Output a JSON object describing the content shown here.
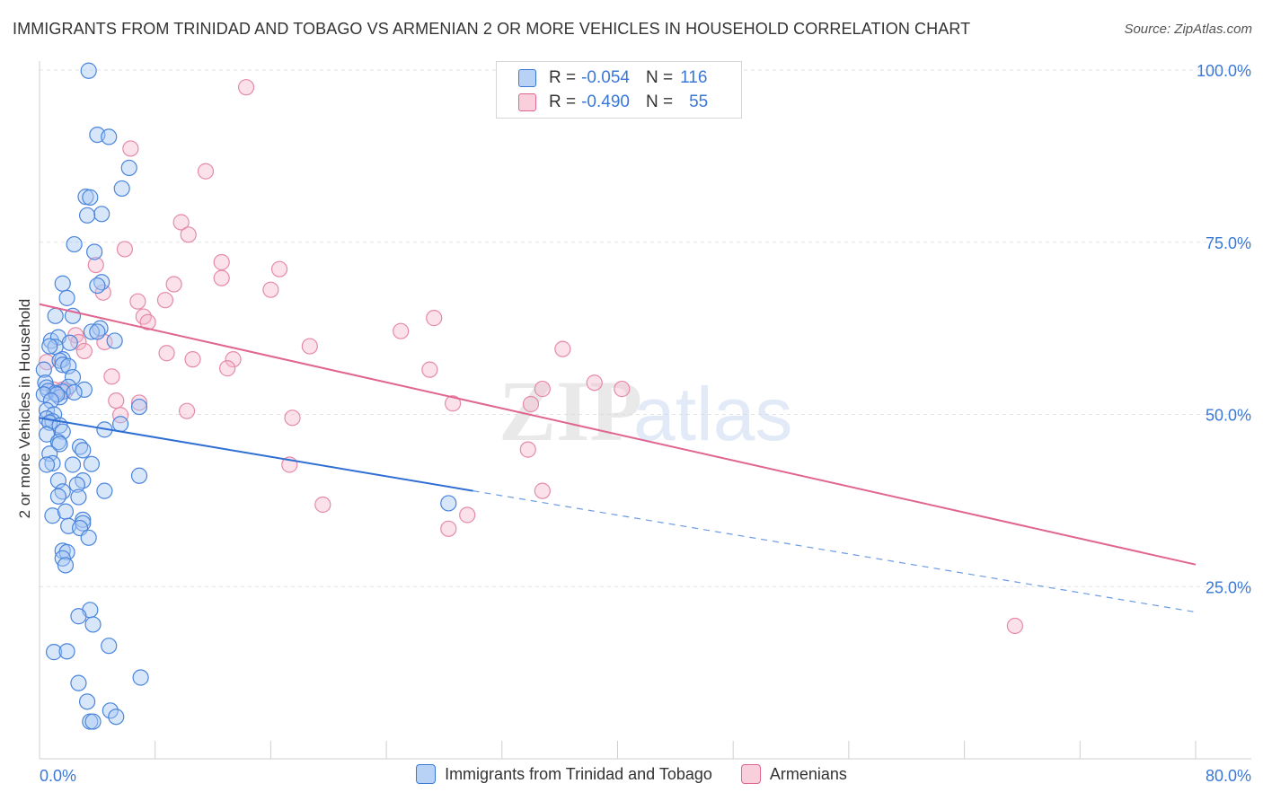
{
  "header": {
    "title": "IMMIGRANTS FROM TRINIDAD AND TOBAGO VS ARMENIAN 2 OR MORE VEHICLES IN HOUSEHOLD CORRELATION CHART",
    "source": "Source: ZipAtlas.com"
  },
  "legend": {
    "rows": [
      {
        "r_label": "R =",
        "r_value": "-0.054",
        "n_label": "N =",
        "n_value": "116"
      },
      {
        "r_label": "R =",
        "r_value": "-0.490",
        "n_label": "N =",
        "n_value": "55"
      }
    ]
  },
  "watermark": {
    "zip": "ZIP",
    "atlas": "atlas"
  },
  "colors": {
    "blue": "#3a78d8",
    "blue_fill": "#a9c8f3",
    "pink": "#e06590",
    "pink_fill": "#f5b7cb",
    "grid": "#e3e3e3",
    "axis_tick_text": "#3a78d8"
  },
  "chart_data": {
    "type": "scatter",
    "title": "IMMIGRANTS FROM TRINIDAD AND TOBAGO VS ARMENIAN 2 OR MORE VEHICLES IN HOUSEHOLD CORRELATION CHART",
    "xlabel": "",
    "ylabel": "2 or more Vehicles in Household",
    "xlim": [
      0,
      80
    ],
    "ylim": [
      0,
      100
    ],
    "x_tick_labels": [
      "0.0%",
      "80.0%"
    ],
    "y_ticks": [
      25,
      50,
      75,
      100
    ],
    "y_tick_labels": [
      "25.0%",
      "50.0%",
      "75.0%",
      "100.0%"
    ],
    "grid": true,
    "legend_placement": "top-center",
    "series": [
      {
        "name": "Immigrants from Trinidad and Tobago",
        "color": "#3a78d8",
        "trend": {
          "x0": 0,
          "y0": 49.5,
          "x1": 30,
          "y1": 38.9,
          "dashed_to_x": 80,
          "dashed_to_y": 21.3
        },
        "points": [
          [
            3.4,
            99.9
          ],
          [
            4.0,
            90.6
          ],
          [
            4.8,
            90.3
          ],
          [
            6.2,
            85.8
          ],
          [
            5.7,
            82.8
          ],
          [
            3.2,
            81.6
          ],
          [
            3.5,
            81.5
          ],
          [
            4.3,
            79.1
          ],
          [
            3.3,
            78.9
          ],
          [
            2.4,
            74.7
          ],
          [
            3.8,
            73.6
          ],
          [
            1.6,
            69.0
          ],
          [
            4.3,
            69.2
          ],
          [
            4.0,
            68.7
          ],
          [
            1.9,
            66.9
          ],
          [
            1.1,
            64.3
          ],
          [
            2.3,
            64.3
          ],
          [
            4.2,
            62.5
          ],
          [
            3.6,
            62.0
          ],
          [
            4.0,
            62.0
          ],
          [
            0.8,
            60.7
          ],
          [
            1.3,
            61.2
          ],
          [
            5.2,
            60.7
          ],
          [
            2.1,
            60.4
          ],
          [
            1.1,
            59.8
          ],
          [
            0.7,
            59.9
          ],
          [
            1.6,
            58.0
          ],
          [
            1.4,
            57.8
          ],
          [
            1.6,
            57.2
          ],
          [
            2.0,
            57.0
          ],
          [
            0.3,
            56.5
          ],
          [
            2.3,
            55.4
          ],
          [
            0.4,
            54.6
          ],
          [
            2.0,
            54.0
          ],
          [
            0.5,
            53.9
          ],
          [
            3.1,
            53.6
          ],
          [
            0.6,
            53.4
          ],
          [
            1.6,
            53.3
          ],
          [
            1.1,
            53.1
          ],
          [
            2.4,
            53.2
          ],
          [
            0.3,
            52.9
          ],
          [
            1.4,
            52.5
          ],
          [
            1.2,
            52.9
          ],
          [
            0.8,
            52.0
          ],
          [
            6.9,
            51.1
          ],
          [
            0.5,
            50.6
          ],
          [
            1.0,
            50.0
          ],
          [
            0.5,
            49.4
          ],
          [
            0.9,
            49.0
          ],
          [
            0.7,
            48.8
          ],
          [
            1.4,
            48.4
          ],
          [
            5.6,
            48.6
          ],
          [
            4.5,
            47.8
          ],
          [
            1.6,
            47.5
          ],
          [
            0.5,
            47.1
          ],
          [
            1.3,
            46.0
          ],
          [
            1.4,
            45.7
          ],
          [
            2.8,
            45.3
          ],
          [
            3.0,
            44.8
          ],
          [
            0.7,
            44.3
          ],
          [
            0.9,
            42.9
          ],
          [
            3.6,
            42.8
          ],
          [
            0.5,
            42.7
          ],
          [
            2.3,
            42.7
          ],
          [
            1.3,
            40.4
          ],
          [
            3.0,
            40.4
          ],
          [
            2.6,
            39.8
          ],
          [
            6.9,
            41.1
          ],
          [
            4.5,
            38.9
          ],
          [
            1.6,
            38.8
          ],
          [
            1.3,
            38.1
          ],
          [
            2.7,
            38.0
          ],
          [
            3.0,
            34.7
          ],
          [
            0.9,
            35.3
          ],
          [
            1.8,
            35.9
          ],
          [
            3.0,
            34.2
          ],
          [
            2.0,
            33.8
          ],
          [
            2.8,
            33.5
          ],
          [
            3.4,
            32.1
          ],
          [
            1.6,
            30.2
          ],
          [
            1.9,
            30.0
          ],
          [
            1.6,
            29.1
          ],
          [
            1.8,
            28.1
          ],
          [
            3.5,
            21.6
          ],
          [
            2.7,
            20.7
          ],
          [
            3.7,
            19.5
          ],
          [
            4.8,
            16.4
          ],
          [
            1.0,
            15.5
          ],
          [
            1.9,
            15.6
          ],
          [
            7.0,
            11.8
          ],
          [
            2.7,
            11.0
          ],
          [
            3.3,
            8.3
          ],
          [
            4.9,
            7.0
          ],
          [
            5.3,
            6.1
          ],
          [
            3.5,
            5.4
          ],
          [
            3.7,
            5.4
          ],
          [
            28.3,
            37.1
          ]
        ]
      },
      {
        "name": "Armenians",
        "color": "#e06590",
        "trend": {
          "x0": 0,
          "y0": 66.0,
          "x1": 80,
          "y1": 28.2
        },
        "points": [
          [
            14.3,
            97.5
          ],
          [
            6.3,
            88.6
          ],
          [
            11.5,
            85.3
          ],
          [
            9.8,
            77.9
          ],
          [
            10.3,
            76.1
          ],
          [
            5.9,
            74.0
          ],
          [
            12.6,
            72.1
          ],
          [
            16.6,
            71.1
          ],
          [
            3.9,
            71.7
          ],
          [
            12.6,
            69.8
          ],
          [
            9.3,
            68.9
          ],
          [
            16.0,
            68.1
          ],
          [
            4.4,
            67.7
          ],
          [
            6.8,
            66.4
          ],
          [
            8.7,
            66.6
          ],
          [
            7.2,
            64.2
          ],
          [
            27.3,
            64.0
          ],
          [
            7.5,
            63.4
          ],
          [
            25.0,
            62.1
          ],
          [
            2.5,
            61.5
          ],
          [
            2.7,
            60.5
          ],
          [
            4.5,
            60.5
          ],
          [
            18.7,
            59.9
          ],
          [
            36.2,
            59.5
          ],
          [
            3.1,
            59.2
          ],
          [
            8.8,
            58.9
          ],
          [
            13.4,
            58.0
          ],
          [
            10.6,
            58.0
          ],
          [
            0.5,
            57.6
          ],
          [
            27.0,
            56.5
          ],
          [
            13.0,
            56.7
          ],
          [
            5.0,
            55.5
          ],
          [
            38.4,
            54.6
          ],
          [
            40.3,
            53.7
          ],
          [
            34.8,
            53.7
          ],
          [
            1.0,
            53.6
          ],
          [
            1.8,
            53.4
          ],
          [
            5.3,
            52.0
          ],
          [
            6.9,
            51.7
          ],
          [
            34.0,
            51.5
          ],
          [
            28.6,
            51.6
          ],
          [
            10.2,
            50.5
          ],
          [
            5.6,
            49.9
          ],
          [
            17.5,
            49.5
          ],
          [
            17.3,
            42.7
          ],
          [
            33.8,
            44.9
          ],
          [
            34.8,
            38.9
          ],
          [
            19.6,
            36.9
          ],
          [
            29.6,
            35.4
          ],
          [
            28.3,
            33.4
          ],
          [
            67.5,
            19.3
          ],
          [
            1.6,
            53.6
          ]
        ]
      }
    ]
  }
}
